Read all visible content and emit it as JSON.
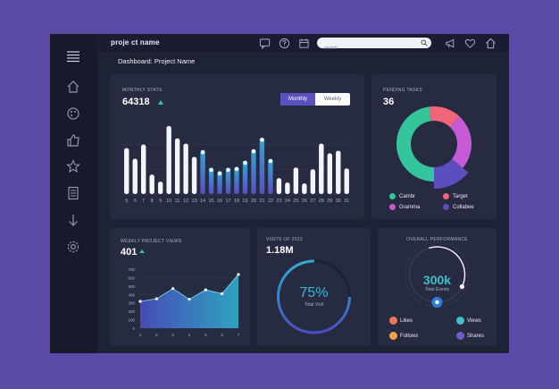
{
  "app": {
    "brand": "proje  ct  name"
  },
  "header": {
    "page_title": "Dashboard: Project Name",
    "search_placeholder": "search"
  },
  "monthly_stats": {
    "title": "MONTHLY STATS",
    "value": "64318",
    "toggle": {
      "monthly": "Monthly",
      "weekly": "Weekly"
    }
  },
  "pending_tasks": {
    "title": "PENDING TASKS",
    "value": "36",
    "legend": [
      {
        "label": "Cambr",
        "color": "#35c59a"
      },
      {
        "label": "Target",
        "color": "#f0657a"
      },
      {
        "label": "Gramma",
        "color": "#c45ad6"
      },
      {
        "label": "Collabee",
        "color": "#5b4fbf"
      }
    ]
  },
  "weekly_views": {
    "title": "WEEKLY PROJECT VIEWS",
    "value": "401"
  },
  "visits": {
    "title": "VISITS OF 2023",
    "value": "1.18M",
    "percent_text": "75%",
    "sub": "Total Visit",
    "progress": 0.75
  },
  "overall": {
    "title": "OVERALL PERFORMANCE",
    "value": "300k",
    "sub": "Total Events",
    "items": [
      {
        "label": "Likes",
        "color": "#e9785a"
      },
      {
        "label": "Views",
        "color": "#3ec1c9"
      },
      {
        "label": "Follows",
        "color": "#f0a24a"
      },
      {
        "label": "Shares",
        "color": "#6b5fd0"
      }
    ]
  },
  "chart_data": [
    {
      "type": "bar",
      "categories": [
        "5",
        "6",
        "7",
        "8",
        "9",
        "10",
        "11",
        "12",
        "13",
        "14",
        "15",
        "16",
        "17",
        "18",
        "19",
        "20",
        "21",
        "22",
        "23",
        "24",
        "25",
        "26",
        "27",
        "28",
        "29",
        "30",
        "31"
      ],
      "values": [
        52,
        40,
        56,
        22,
        14,
        77,
        63,
        57,
        42,
        50,
        30,
        26,
        30,
        31,
        38,
        51,
        64,
        40,
        18,
        13,
        30,
        12,
        28,
        57,
        46,
        49,
        29
      ],
      "highlight_range": [
        "14",
        "22"
      ],
      "ylim": [
        0,
        85
      ],
      "grid": true,
      "colors": {
        "base": "#f4f5fa",
        "highlight_top": "#2fa7d6",
        "highlight_bottom": "#5b4fbf"
      }
    },
    {
      "type": "pie",
      "style": "donut",
      "labels": [
        "Cambr",
        "Target",
        "Gramma",
        "Collabee"
      ],
      "values": [
        48,
        14,
        24,
        14
      ]
    },
    {
      "type": "area",
      "categories": [
        "1",
        "2",
        "3",
        "4",
        "5",
        "6",
        "7"
      ],
      "values": [
        10.5,
        11.5,
        15.5,
        11.3,
        15,
        13.5,
        21
      ],
      "ylim": [
        0,
        30
      ],
      "yticks": [
        0,
        100,
        200,
        300,
        400,
        500,
        600,
        700
      ],
      "grid": true
    }
  ]
}
